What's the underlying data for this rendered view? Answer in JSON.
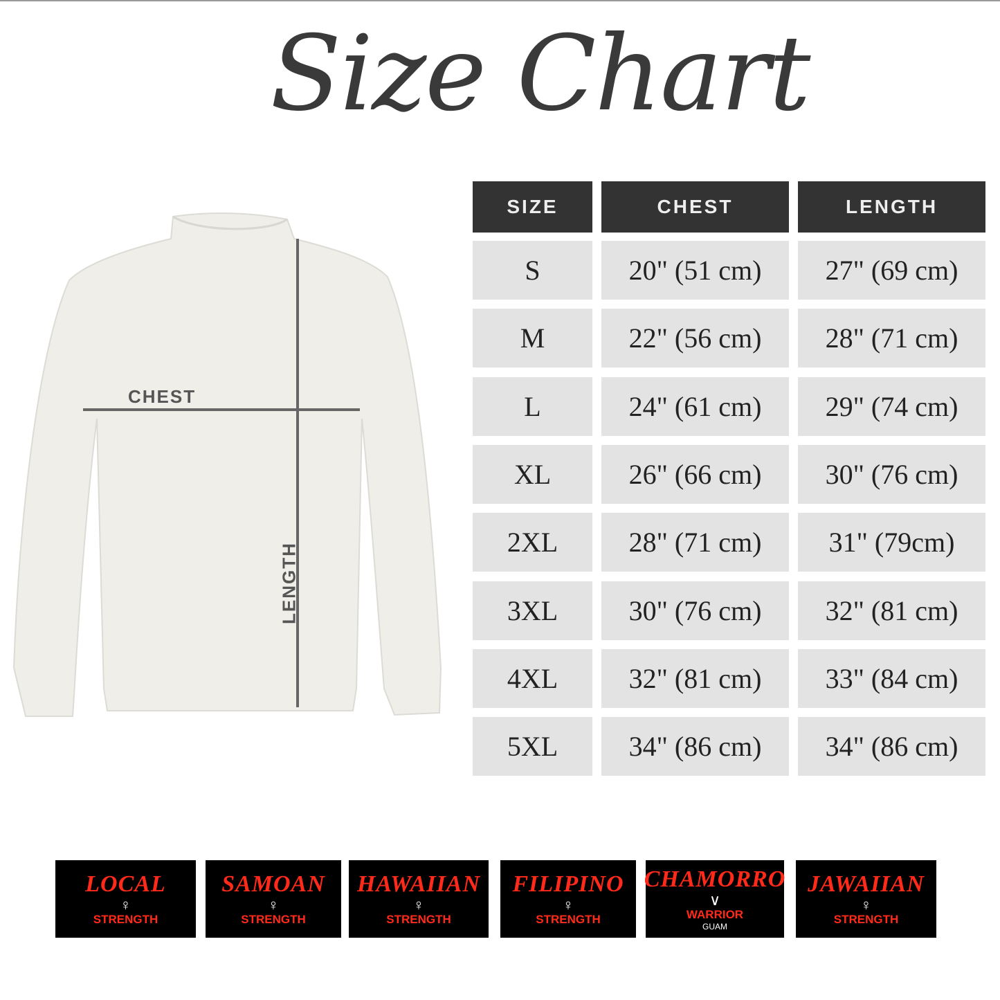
{
  "title": "Size Chart",
  "diagram": {
    "chest_label": "CHEST",
    "length_label": "LENGTH"
  },
  "table": {
    "headers": [
      "SIZE",
      "CHEST",
      "LENGTH"
    ],
    "rows": [
      [
        "S",
        "20\" (51 cm)",
        "27\" (69 cm)"
      ],
      [
        "M",
        "22\" (56 cm)",
        "28\" (71 cm)"
      ],
      [
        "L",
        "24\" (61 cm)",
        "29\" (74 cm)"
      ],
      [
        "XL",
        "26\" (66 cm)",
        "30\" (76 cm)"
      ],
      [
        "2XL",
        "28\" (71 cm)",
        "31\" (79cm)"
      ],
      [
        "3XL",
        "30\" (76 cm)",
        "32\" (81 cm)"
      ],
      [
        "4XL",
        "32\" (81 cm)",
        "33\" (84 cm)"
      ],
      [
        "5XL",
        "34\" (86 cm)",
        "34\" (86 cm)"
      ]
    ]
  },
  "logos": [
    {
      "name": "LOCAL",
      "sub": "STRENGTH"
    },
    {
      "name": "SAMOAN",
      "sub": "STRENGTH"
    },
    {
      "name": "HAWAIIAN",
      "sub": "STRENGTH"
    },
    {
      "name": "FILIPINO",
      "sub": "STRENGTH"
    },
    {
      "name": "CHAMORRO",
      "sub": "WARRIOR",
      "extra": "GUAM"
    },
    {
      "name": "JAWAIIAN",
      "sub": "STRENGTH"
    }
  ],
  "colors": {
    "header_bg": "#333333",
    "cell_bg": "#e3e3e3",
    "logo_red": "#ff2a1a",
    "logo_bg": "#000000"
  }
}
